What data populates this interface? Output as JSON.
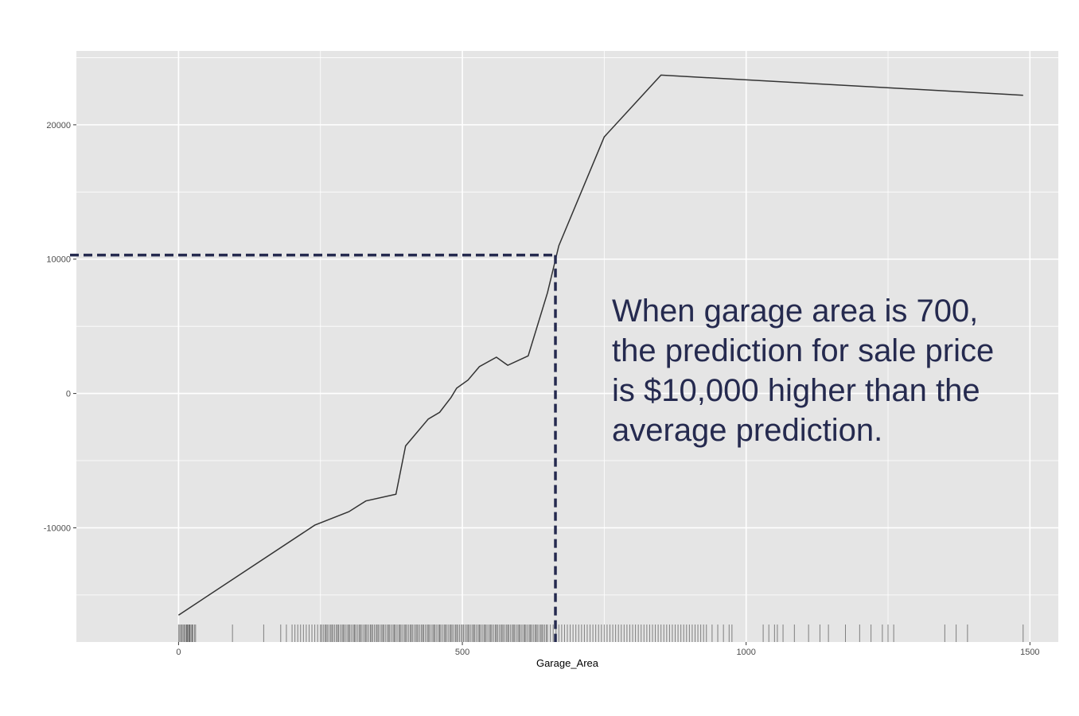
{
  "chart_data": {
    "type": "line",
    "title": "",
    "xlabel": "Garage_Area",
    "ylabel": "",
    "xlim": [
      -180,
      1550
    ],
    "ylim": [
      -18500,
      25500
    ],
    "x_ticks": [
      0,
      500,
      1000,
      1500
    ],
    "y_ticks": [
      -10000,
      0,
      10000,
      20000
    ],
    "grid": true,
    "series": [
      {
        "x": [
          0,
          240,
          300,
          330,
          383,
          400,
          440,
          460,
          480,
          490,
          510,
          530,
          560,
          580,
          616,
          650,
          670,
          750,
          850,
          1488
        ],
        "y": [
          -16500,
          -9800,
          -8800,
          -8000,
          -7500,
          -3900,
          -1900,
          -1400,
          -300,
          400,
          1000,
          2000,
          2700,
          2100,
          2800,
          7500,
          11000,
          19100,
          23700,
          22200
        ]
      }
    ],
    "reference_lines": {
      "x": 664,
      "y": 10300,
      "color": "#252a4f"
    },
    "rug": [
      0,
      2,
      4,
      6,
      8,
      10,
      12,
      14,
      15,
      16,
      18,
      19,
      20,
      22,
      24,
      25,
      28,
      30,
      95,
      150,
      180,
      190,
      200,
      205,
      210,
      215,
      220,
      225,
      230,
      235,
      240,
      245,
      250,
      252,
      255,
      258,
      260,
      262,
      265,
      268,
      270,
      272,
      275,
      278,
      280,
      282,
      285,
      288,
      290,
      292,
      295,
      298,
      300,
      302,
      305,
      308,
      310,
      312,
      315,
      318,
      320,
      322,
      325,
      328,
      330,
      332,
      335,
      338,
      340,
      342,
      345,
      348,
      350,
      352,
      355,
      358,
      360,
      362,
      365,
      368,
      370,
      372,
      375,
      378,
      380,
      382,
      385,
      388,
      390,
      392,
      395,
      398,
      400,
      402,
      405,
      408,
      410,
      412,
      415,
      418,
      420,
      422,
      425,
      428,
      430,
      432,
      435,
      438,
      440,
      442,
      445,
      448,
      450,
      452,
      455,
      458,
      460,
      462,
      465,
      468,
      470,
      472,
      475,
      478,
      480,
      482,
      485,
      488,
      490,
      492,
      495,
      498,
      500,
      502,
      505,
      508,
      510,
      512,
      515,
      518,
      520,
      522,
      525,
      528,
      530,
      532,
      535,
      538,
      540,
      542,
      545,
      548,
      550,
      552,
      555,
      558,
      560,
      562,
      565,
      568,
      570,
      572,
      575,
      578,
      580,
      582,
      585,
      588,
      590,
      592,
      595,
      598,
      600,
      602,
      605,
      608,
      610,
      612,
      615,
      618,
      620,
      622,
      625,
      628,
      630,
      632,
      635,
      638,
      640,
      642,
      645,
      648,
      650,
      655,
      660,
      665,
      670,
      675,
      680,
      685,
      690,
      695,
      700,
      705,
      710,
      715,
      720,
      725,
      730,
      735,
      740,
      745,
      750,
      755,
      760,
      765,
      770,
      775,
      780,
      785,
      790,
      795,
      800,
      805,
      810,
      815,
      820,
      825,
      830,
      835,
      840,
      845,
      850,
      855,
      860,
      865,
      870,
      875,
      880,
      885,
      890,
      895,
      900,
      905,
      910,
      915,
      920,
      925,
      930,
      940,
      950,
      960,
      970,
      975,
      1030,
      1040,
      1050,
      1055,
      1065,
      1085,
      1110,
      1130,
      1145,
      1175,
      1200,
      1220,
      1240,
      1250,
      1260,
      1350,
      1370,
      1390,
      1488
    ],
    "annotation_lines": [
      "When garage area is 700,",
      "the prediction for sale price",
      "is $10,000 higher than the",
      "average prediction."
    ]
  },
  "colors": {
    "panel": "#e5e5e5",
    "grid": "#ffffff",
    "line": "#333333",
    "annotation": "#252a4f"
  }
}
